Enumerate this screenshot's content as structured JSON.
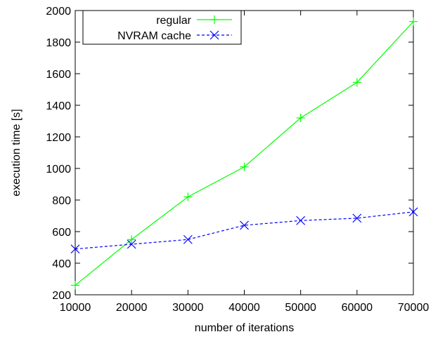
{
  "chart_data": {
    "type": "line",
    "title": "",
    "xlabel": "number of iterations",
    "ylabel": "execution time [s]",
    "xlim": [
      10000,
      70000
    ],
    "ylim": [
      200,
      2000
    ],
    "x_ticks": [
      10000,
      20000,
      30000,
      40000,
      50000,
      60000,
      70000
    ],
    "y_ticks": [
      200,
      400,
      600,
      800,
      1000,
      1200,
      1400,
      1600,
      1800,
      2000
    ],
    "x": [
      10000,
      20000,
      30000,
      40000,
      50000,
      60000,
      70000
    ],
    "grid": false,
    "legend_position": "top-left",
    "series": [
      {
        "name": "regular",
        "values": [
          260,
          550,
          820,
          1010,
          1320,
          1545,
          1930
        ],
        "color": "#00ff00",
        "marker": "plus",
        "line_style": "solid"
      },
      {
        "name": "NVRAM cache",
        "values": [
          490,
          520,
          550,
          640,
          670,
          685,
          725
        ],
        "color": "#0000ff",
        "marker": "cross",
        "line_style": "dashed"
      }
    ]
  }
}
